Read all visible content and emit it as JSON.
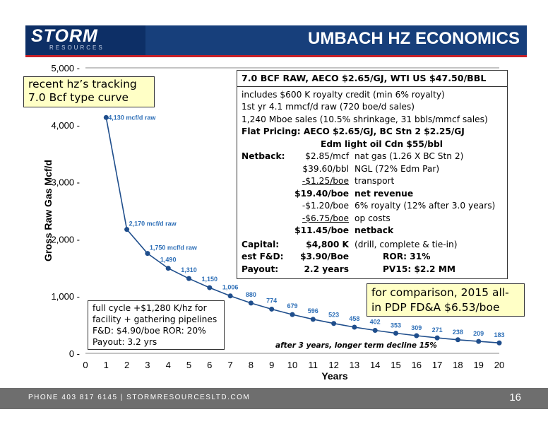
{
  "header": {
    "logo_text": "STORM",
    "logo_sub": "RESOURCES",
    "title": "UMBACH HZ ECONOMICS"
  },
  "footer": {
    "contact": "PHONE 403 817 6145   |   STORMRESOURCESLTD.COM",
    "page_number": "16"
  },
  "callouts": {
    "type_curve": "recent hz's tracking 7.0 Bcf type curve",
    "type_curve_line1": "recent hz’s tracking",
    "type_curve_line2": "7.0 Bcf type curve",
    "comparison_line1": "for comparison, 2015 all-",
    "comparison_line2": "in PDP FD&A $6.53/boe",
    "full_cycle_line1": "full cycle +$1,280 K/hz for",
    "full_cycle_line2": "facility + gathering pipelines",
    "full_cycle_line3": "F&D: $4.90/boe    ROR: 20%",
    "full_cycle_line4": "Payout: 3.2 yrs",
    "decline_note": "after 3 years, longer term decline 15%"
  },
  "economics": {
    "heading": "7.0 BCF RAW, AECO $2.65/GJ, WTI US $47.50/BBL",
    "line1": "includes $600 K royalty credit (min 6% royalty)",
    "line2": "1st yr 4.1 mmcf/d raw (720 boe/d sales)",
    "line3": "1,240 Mboe sales (10.5% shrinkage, 31 bbls/mmcf sales)",
    "flat_pricing_1": "Flat Pricing:  AECO $2.65/GJ, BC Stn 2 $2.25/GJ",
    "flat_pricing_2": "Edm light oil Cdn $55/bbl",
    "netback_label": "Netback:",
    "netback": [
      {
        "value": "$2.85/mcf",
        "desc": "nat gas (1.26 X BC Stn 2)"
      },
      {
        "value": "$39.60/bbl",
        "desc": "NGL (72% Edm Par)"
      },
      {
        "value": "-$1.25/boe",
        "desc": "transport"
      },
      {
        "value": "$19.40/boe",
        "desc": "net revenue"
      },
      {
        "value": "-$1.20/boe",
        "desc": "6% royalty (12% after 3.0 years)"
      },
      {
        "value": "-$6.75/boe",
        "desc": "op costs"
      },
      {
        "value": "$11.45/boe",
        "desc": "netback"
      }
    ],
    "capital_label": "Capital:",
    "capital_value": "$4,800 K",
    "capital_desc": "(drill, complete & tie-in)",
    "fd_label": "est F&D:",
    "fd_value": "$3.90/Boe",
    "ror": "ROR: 31%",
    "payout_label": "Payout:",
    "payout_value": "2.2 years",
    "pv15": "PV15: $2.2 MM"
  },
  "chart_data": {
    "type": "line",
    "xlabel": "Years",
    "ylabel": "Gross Raw Gas Mcf/d",
    "xlim": [
      0,
      20
    ],
    "ylim": [
      0,
      5000
    ],
    "x_ticks": [
      "0",
      "1",
      "2",
      "3",
      "4",
      "5",
      "6",
      "7",
      "8",
      "9",
      "10",
      "11",
      "12",
      "13",
      "14",
      "15",
      "16",
      "17",
      "18",
      "19",
      "20"
    ],
    "y_ticks": [
      "0",
      "1,000",
      "2,000",
      "3,000",
      "4,000",
      "5,000"
    ],
    "series": [
      {
        "x": [
          1,
          2,
          3,
          4,
          5,
          6,
          7,
          8,
          9,
          10,
          11,
          12,
          13,
          14,
          15,
          16,
          17,
          18,
          19,
          20
        ],
        "values": [
          4130,
          2170,
          1750,
          1490,
          1310,
          1150,
          1006,
          880,
          774,
          679,
          596,
          523,
          458,
          402,
          353,
          309,
          271,
          238,
          209,
          183
        ]
      }
    ],
    "point_labels": [
      "4,130  mcf/d raw",
      "2,170 mcf/d raw",
      "1,750 mcf/d raw",
      "1,490",
      "1,310",
      "1,150",
      "1,006",
      "880",
      "774",
      "679",
      "596",
      "523",
      "458",
      "402",
      "353",
      "309",
      "271",
      "238",
      "209",
      "183"
    ],
    "line_color": "#1f4e8c",
    "label_color": "#2e6fb7",
    "grid": false
  }
}
